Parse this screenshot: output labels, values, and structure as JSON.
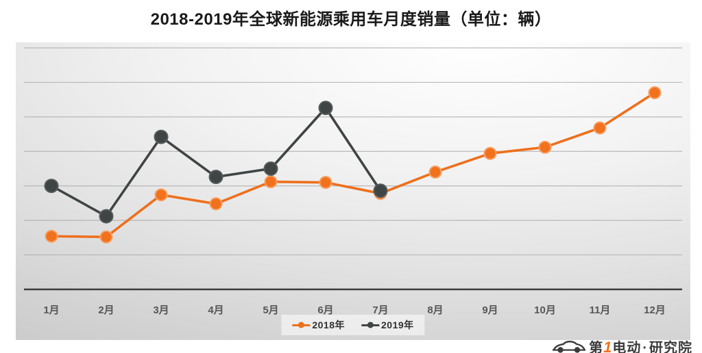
{
  "chart_data": {
    "type": "line",
    "title": "2018-2019年全球新能源乘用车月度销量（单位：辆）",
    "categories": [
      "1月",
      "2月",
      "3月",
      "4月",
      "5月",
      "6月",
      "7月",
      "8月",
      "9月",
      "10月",
      "11月",
      "12月"
    ],
    "series": [
      {
        "name": "2018年",
        "color": "#EE6F1C",
        "marker_fill": "#F2711C",
        "marker_halo": "#F6A065",
        "values": [
          77000,
          76000,
          137000,
          124000,
          156000,
          155000,
          139000,
          170000,
          197000,
          206000,
          234000,
          285000
        ]
      },
      {
        "name": "2019年",
        "color": "#3F4445",
        "marker_fill": "#3F4445",
        "marker_halo": "#565B5C",
        "values": [
          150000,
          106000,
          221000,
          163000,
          175000,
          263000,
          143000
        ]
      }
    ],
    "xlabel": "",
    "ylabel": "",
    "ylim": [
      0,
      350000
    ],
    "gridline_step": 50000,
    "grid": "horizontal",
    "y_axis_labels_visible": false,
    "legend_position": "bottom-center",
    "colors": {
      "gridline": "#ABABAB",
      "axis": "#3C3C3C",
      "month_label": "#565656",
      "legend_text": "#303030",
      "title": "#1A1A1A"
    }
  },
  "watermark": {
    "car_icon": "car-outline-icon",
    "brand_prefix": "第",
    "brand_number": "1",
    "brand_suffix": "电动",
    "separator": "·",
    "institute": "研究院",
    "number_color": "#F2711C",
    "text_color": "#3B3B3B"
  }
}
